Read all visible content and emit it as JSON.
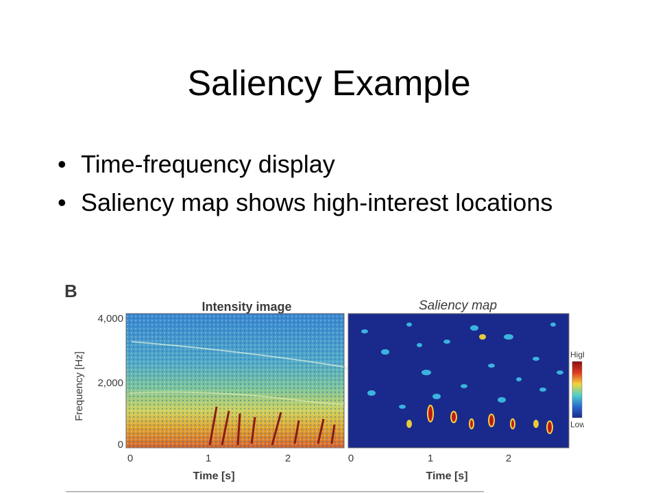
{
  "slide": {
    "title": "Saliency Example",
    "bullets": [
      "Time-frequency display",
      "Saliency map shows high-interest locations"
    ]
  },
  "figure": {
    "panel_label": "B",
    "left_panel": {
      "title": "Intensity image",
      "ylabel": "Frequency [Hz]",
      "yticks": [
        "4,000",
        "2,000",
        "0"
      ],
      "xticks": [
        "0",
        "1",
        "2"
      ],
      "xlabel": "Time [s]"
    },
    "right_panel": {
      "title": "Saliency map",
      "xticks": [
        "0",
        "1",
        "2"
      ],
      "xlabel": "Time [s]"
    },
    "colorbar": {
      "high": "High",
      "low": "Low"
    },
    "colors": {
      "map_background": "#1a2a8c",
      "spectrogram_top": "#3b8fd0",
      "spectrogram_bottom": "#d9b020",
      "saliency_hot": "#c0181a"
    }
  }
}
